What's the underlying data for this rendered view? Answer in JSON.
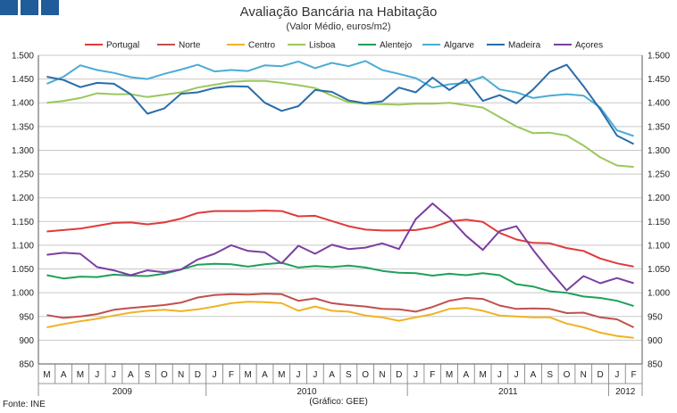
{
  "branding": {
    "colors": [
      "#1f5c99",
      "#1f5c99",
      "#1f5c99"
    ]
  },
  "header": {
    "title": "Avaliação Bancária na Habitação",
    "subtitle": "(Valor Médio, euros/m2)"
  },
  "footer": {
    "source": "Fonte: INE",
    "credit": "(Gráfico: GEE)"
  },
  "chart_data": {
    "type": "line",
    "title": "Avaliação Bancária na Habitação",
    "subtitle": "(Valor Médio, euros/m2)",
    "ylim": [
      850,
      1500
    ],
    "yticks": [
      850,
      900,
      950,
      1000,
      1050,
      1100,
      1150,
      1200,
      1250,
      1300,
      1350,
      1400,
      1450,
      1500
    ],
    "y_axis_both_sides": true,
    "grid": "horizontal",
    "legend_position": "top",
    "x": [
      "M",
      "A",
      "M",
      "J",
      "J",
      "A",
      "S",
      "O",
      "N",
      "D",
      "J",
      "F",
      "M",
      "A",
      "M",
      "J",
      "J",
      "A",
      "S",
      "O",
      "N",
      "D",
      "J",
      "F",
      "M",
      "A",
      "M",
      "J",
      "J",
      "A",
      "S",
      "O",
      "N",
      "D",
      "J",
      "F"
    ],
    "years": [
      {
        "label": "2009",
        "start": 0,
        "end": 9
      },
      {
        "label": "2010",
        "start": 10,
        "end": 21
      },
      {
        "label": "2011",
        "start": 22,
        "end": 33
      },
      {
        "label": "2012",
        "start": 34,
        "end": 35
      }
    ],
    "series": [
      {
        "name": "Portugal",
        "color": "#e03a3a",
        "values": [
          1129,
          1132,
          1135,
          1141,
          1147,
          1148,
          1144,
          1148,
          1156,
          1168,
          1172,
          1172,
          1172,
          1173,
          1172,
          1161,
          1162,
          1151,
          1140,
          1133,
          1131,
          1131,
          1132,
          1138,
          1150,
          1154,
          1149,
          1126,
          1112,
          1105,
          1104,
          1094,
          1088,
          1072,
          1062,
          1055
        ]
      },
      {
        "name": "Norte",
        "color": "#c0504d",
        "values": [
          953,
          947,
          950,
          955,
          964,
          968,
          971,
          974,
          979,
          990,
          995,
          997,
          996,
          998,
          997,
          983,
          988,
          978,
          974,
          971,
          966,
          965,
          960,
          970,
          983,
          989,
          987,
          973,
          966,
          967,
          966,
          957,
          958,
          948,
          944,
          927
        ]
      },
      {
        "name": "Centro",
        "color": "#f0b323",
        "values": [
          927,
          934,
          940,
          945,
          952,
          958,
          962,
          964,
          961,
          965,
          971,
          978,
          981,
          980,
          978,
          962,
          971,
          962,
          960,
          952,
          948,
          941,
          948,
          955,
          966,
          968,
          962,
          952,
          950,
          948,
          948,
          935,
          927,
          916,
          909,
          905
        ]
      },
      {
        "name": "Lisboa",
        "color": "#9bc75a",
        "values": [
          1400,
          1404,
          1410,
          1420,
          1418,
          1418,
          1412,
          1417,
          1422,
          1432,
          1438,
          1444,
          1446,
          1446,
          1442,
          1437,
          1431,
          1415,
          1401,
          1398,
          1397,
          1396,
          1398,
          1398,
          1400,
          1395,
          1390,
          1370,
          1350,
          1336,
          1337,
          1331,
          1310,
          1285,
          1268,
          1265
        ]
      },
      {
        "name": "Alentejo",
        "color": "#1fa05a",
        "values": [
          1037,
          1030,
          1034,
          1033,
          1038,
          1036,
          1035,
          1040,
          1049,
          1059,
          1061,
          1060,
          1055,
          1060,
          1063,
          1053,
          1056,
          1054,
          1057,
          1053,
          1046,
          1042,
          1041,
          1036,
          1040,
          1037,
          1041,
          1037,
          1018,
          1013,
          1003,
          1000,
          992,
          989,
          983,
          972
        ]
      },
      {
        "name": "Algarve",
        "color": "#4bacd6",
        "values": [
          1440,
          1455,
          1479,
          1469,
          1463,
          1454,
          1450,
          1461,
          1470,
          1480,
          1466,
          1469,
          1467,
          1479,
          1477,
          1487,
          1473,
          1484,
          1477,
          1488,
          1469,
          1461,
          1452,
          1432,
          1439,
          1442,
          1455,
          1428,
          1422,
          1410,
          1415,
          1418,
          1415,
          1390,
          1342,
          1330
        ]
      },
      {
        "name": "Madeira",
        "color": "#2a6ca8",
        "values": [
          1455,
          1448,
          1433,
          1442,
          1440,
          1418,
          1377,
          1388,
          1419,
          1422,
          1431,
          1435,
          1434,
          1400,
          1383,
          1393,
          1427,
          1423,
          1405,
          1399,
          1403,
          1432,
          1422,
          1453,
          1427,
          1449,
          1404,
          1416,
          1399,
          1428,
          1465,
          1480,
          1435,
          1386,
          1331,
          1313
        ]
      },
      {
        "name": "Açores",
        "color": "#7b3fa0",
        "values": [
          1080,
          1084,
          1082,
          1054,
          1047,
          1037,
          1047,
          1043,
          1049,
          1070,
          1082,
          1100,
          1088,
          1085,
          1062,
          1099,
          1082,
          1101,
          1092,
          1095,
          1104,
          1092,
          1155,
          1188,
          1158,
          1120,
          1090,
          1130,
          1140,
          1090,
          1046,
          1005,
          1035,
          1020,
          1031,
          1020
        ]
      }
    ]
  }
}
